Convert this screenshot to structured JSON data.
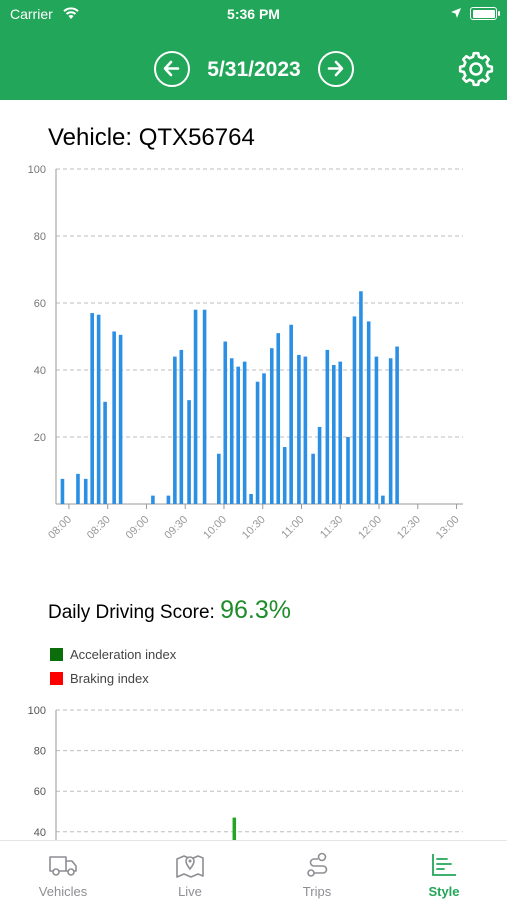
{
  "status_bar": {
    "carrier": "Carrier",
    "time": "5:36 PM"
  },
  "header": {
    "date": "5/31/2023",
    "prev_icon": "arrow-left-circle-icon",
    "next_icon": "arrow-right-circle-icon",
    "settings_icon": "gear-icon"
  },
  "vehicle_title": "Vehicle: QTX56764",
  "score": {
    "label": "Daily Driving Score: ",
    "value": "96.3%"
  },
  "legend": [
    {
      "label": "Acceleration index",
      "color": "#0b6e0b"
    },
    {
      "label": "Braking index",
      "color": "#ff0000"
    }
  ],
  "tabs": [
    {
      "label": "Vehicles",
      "icon": "truck-icon",
      "active": false
    },
    {
      "label": "Live",
      "icon": "map-pin-icon",
      "active": false
    },
    {
      "label": "Trips",
      "icon": "route-icon",
      "active": false
    },
    {
      "label": "Style",
      "icon": "chart-lines-icon",
      "active": true
    }
  ],
  "chart_data": [
    {
      "type": "bar",
      "title": "",
      "xlabel": "",
      "ylabel": "",
      "ylim": [
        0,
        100
      ],
      "xlim_minutes_from_0800": [
        -10,
        305
      ],
      "yticks": [
        0,
        20,
        40,
        60,
        80,
        100
      ],
      "yticks_labeled": [
        "",
        "20",
        "40",
        "60",
        "80",
        "100"
      ],
      "xticks": [
        "08:00",
        "08:30",
        "09:00",
        "09:30",
        "10:00",
        "10:30",
        "11:00",
        "11:30",
        "12:00",
        "12:30",
        "13:00"
      ],
      "grid": "horizontal dashed",
      "bar_color": "#2b8fe3",
      "x_minutes_from_0800": [
        -5,
        7,
        13,
        18,
        23,
        28,
        35,
        40,
        65,
        77,
        82,
        87,
        93,
        98,
        105,
        116,
        121,
        126,
        131,
        136,
        141,
        146,
        151,
        157,
        162,
        167,
        172,
        178,
        183,
        189,
        194,
        200,
        205,
        210,
        216,
        221,
        226,
        232,
        238,
        243,
        249,
        254,
        260,
        265
      ],
      "values": [
        7.5,
        9,
        7.5,
        57,
        56.5,
        30.5,
        51.5,
        50.5,
        2.5,
        2.5,
        44,
        46,
        31,
        58,
        58,
        15,
        48.5,
        43.5,
        41,
        42.5,
        3,
        36.5,
        39,
        46.5,
        51,
        17,
        53.5,
        44.5,
        44,
        15,
        23,
        46,
        41.5,
        42.5,
        20,
        56,
        63.5,
        54.5,
        44,
        2.5,
        43.5,
        47,
        0,
        0
      ]
    },
    {
      "type": "bar",
      "title": "",
      "ylim": [
        0,
        100
      ],
      "yticks_visible": [
        "40",
        "60",
        "80",
        "100"
      ],
      "series": [
        {
          "name": "Acceleration index",
          "color": "#22a622",
          "x_minutes_from_0800": [
            128
          ],
          "values": [
            47
          ]
        },
        {
          "name": "Braking index",
          "color": "#ff0000",
          "x_minutes_from_0800": [],
          "values": []
        }
      ]
    }
  ]
}
